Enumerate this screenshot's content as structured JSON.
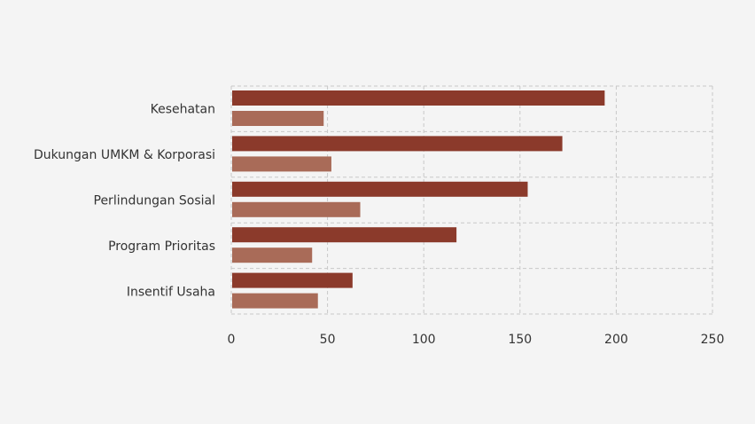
{
  "chart_data": {
    "type": "bar",
    "orientation": "horizontal",
    "categories": [
      "Kesehatan",
      "Dukungan UMKM & Korporasi",
      "Perlindungan Sosial",
      "Program Prioritas",
      "Insentif Usaha"
    ],
    "series": [
      {
        "values": [
          194,
          172,
          154,
          117,
          63
        ],
        "color": "#8b3a2b"
      },
      {
        "values": [
          48,
          52,
          67,
          42,
          45
        ],
        "color": "#a96b58"
      }
    ],
    "xlim": [
      0,
      250
    ],
    "xticks": [
      "0",
      "50",
      "100",
      "150",
      "200",
      "250"
    ],
    "grid": true,
    "title": "",
    "xlabel": "",
    "ylabel": ""
  }
}
